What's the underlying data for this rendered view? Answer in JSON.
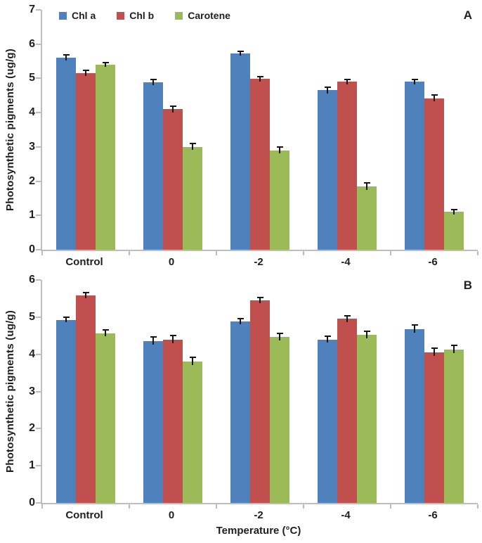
{
  "figure": {
    "y_axis_title": "Photosynthetic pigments (ug/g)",
    "x_axis_title": "Temperature (°C)"
  },
  "chart_data": [
    {
      "type": "bar",
      "panel_label": "A",
      "categories": [
        "Control",
        "0",
        "-2",
        "-4",
        "-6"
      ],
      "series": [
        {
          "name": "Chl a",
          "color": "#4f81bd",
          "values": [
            5.6,
            4.88,
            5.73,
            4.65,
            4.9
          ],
          "errors": [
            0.08,
            0.08,
            0.06,
            0.1,
            0.07
          ]
        },
        {
          "name": "Chl b",
          "color": "#c0504d",
          "values": [
            5.15,
            4.1,
            4.98,
            4.9,
            4.42
          ],
          "errors": [
            0.08,
            0.09,
            0.08,
            0.07,
            0.09
          ]
        },
        {
          "name": "Carotene",
          "color": "#9bbb59",
          "values": [
            5.4,
            3.0,
            2.9,
            1.85,
            1.1
          ],
          "errors": [
            0.07,
            0.09,
            0.09,
            0.11,
            0.08
          ]
        }
      ],
      "ylabel": "Photosynthetic pigments (ug/g)",
      "xlabel": "",
      "ylim": [
        0,
        7
      ],
      "yticks": [
        0,
        1,
        2,
        3,
        4,
        5,
        6,
        7
      ],
      "grid": false,
      "legend_position": "top-inside"
    },
    {
      "type": "bar",
      "panel_label": "B",
      "categories": [
        "Control",
        "0",
        "-2",
        "-4",
        "-6"
      ],
      "series": [
        {
          "name": "Chl a",
          "color": "#4f81bd",
          "values": [
            4.93,
            4.35,
            4.88,
            4.4,
            4.68
          ],
          "errors": [
            0.07,
            0.11,
            0.08,
            0.09,
            0.11
          ]
        },
        {
          "name": "Chl b",
          "color": "#c0504d",
          "values": [
            5.58,
            4.4,
            5.45,
            4.95,
            4.05
          ],
          "errors": [
            0.08,
            0.11,
            0.08,
            0.08,
            0.11
          ]
        },
        {
          "name": "Carotene",
          "color": "#9bbb59",
          "values": [
            4.57,
            3.8,
            4.47,
            4.52,
            4.13
          ],
          "errors": [
            0.08,
            0.11,
            0.1,
            0.09,
            0.11
          ]
        }
      ],
      "ylabel": "Photosynthetic pigments (ug/g)",
      "xlabel": "Temperature (°C)",
      "ylim": [
        0,
        6
      ],
      "yticks": [
        0,
        1,
        2,
        3,
        4,
        5,
        6
      ],
      "grid": false,
      "legend_position": "none"
    }
  ]
}
